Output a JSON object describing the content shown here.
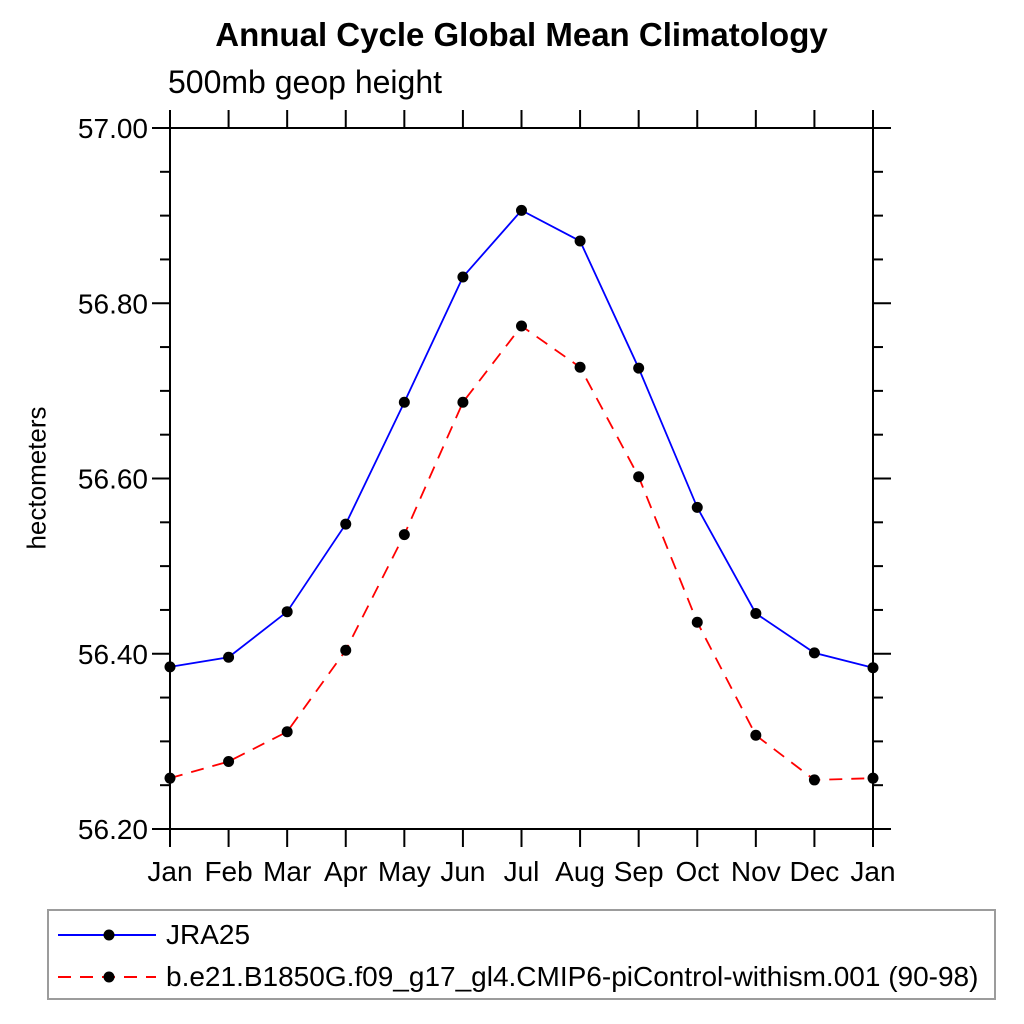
{
  "chart_data": {
    "type": "line",
    "title": "Annual Cycle Global Mean Climatology",
    "subtitle": "500mb geop height",
    "ylabel": "hectometers",
    "xlabel": "",
    "categories": [
      "Jan",
      "Feb",
      "Mar",
      "Apr",
      "May",
      "Jun",
      "Jul",
      "Aug",
      "Sep",
      "Oct",
      "Nov",
      "Dec",
      "Jan"
    ],
    "series": [
      {
        "name": "JRA25",
        "color": "#0000ff",
        "line_style": "solid",
        "marker": "filled-circle",
        "marker_color": "#000000",
        "values": [
          56.385,
          56.396,
          56.448,
          56.548,
          56.687,
          56.83,
          56.906,
          56.871,
          56.726,
          56.567,
          56.446,
          56.401,
          56.384
        ]
      },
      {
        "name": "b.e21.B1850G.f09_g17_gl4.CMIP6-piControl-withism.001 (90-98)",
        "color": "#ff0000",
        "line_style": "dashed",
        "marker": "filled-circle",
        "marker_color": "#000000",
        "values": [
          56.258,
          56.277,
          56.311,
          56.404,
          56.536,
          56.687,
          56.774,
          56.727,
          56.602,
          56.436,
          56.307,
          56.256,
          56.258
        ]
      }
    ],
    "ylim": [
      56.2,
      57.0
    ],
    "yticks": [
      {
        "value": 56.2,
        "label": "56.20"
      },
      {
        "value": 56.4,
        "label": "56.40"
      },
      {
        "value": 56.6,
        "label": "56.60"
      },
      {
        "value": 56.8,
        "label": "56.80"
      },
      {
        "value": 57.0,
        "label": "57.00"
      }
    ],
    "y_minor_step": 0.05,
    "grid": false,
    "legend_position": "bottom-box",
    "axis_color": "#000000",
    "background_color": "#ffffff"
  }
}
